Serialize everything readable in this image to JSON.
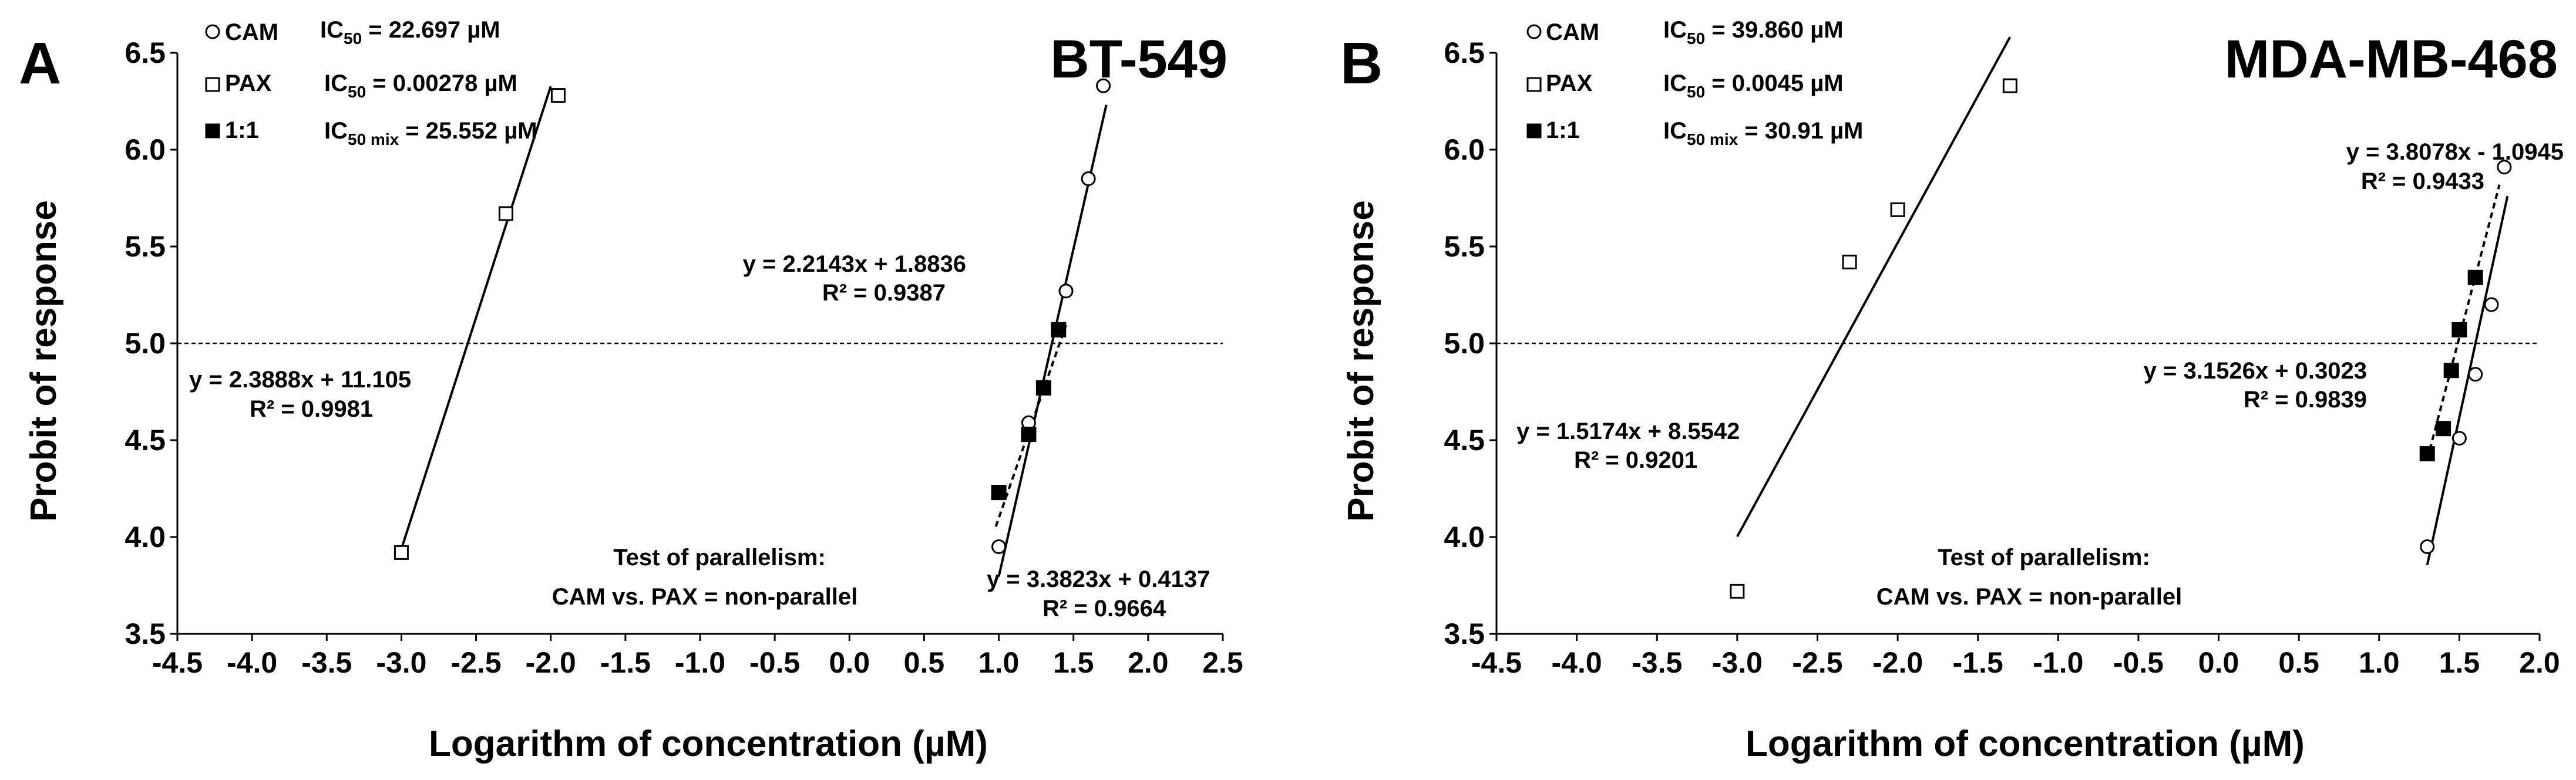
{
  "chart_data": [
    {
      "type": "scatter",
      "panel": "A",
      "title": "BT-549",
      "xlabel": "Logarithm of concentration (µM)",
      "ylabel": "Probit of response",
      "xlim": [
        -4.5,
        2.5
      ],
      "ylim": [
        3.5,
        6.5
      ],
      "x_ticks": [
        "-4.5",
        "-4.0",
        "-3.5",
        "-3.0",
        "-2.5",
        "-2.0",
        "-1.5",
        "-1.0",
        "-0.5",
        "0.0",
        "0.5",
        "1.0",
        "1.5",
        "2.0",
        "2.5"
      ],
      "y_ticks": [
        "3.5",
        "4.0",
        "4.5",
        "5.0",
        "5.5",
        "6.0",
        "6.5"
      ],
      "reference_y": 5.0,
      "legend": [
        {
          "marker": "open-circle",
          "name": "CAM",
          "ic_main": "IC",
          "ic_sub": "50",
          "ic_tail": " = 22.697 µM"
        },
        {
          "marker": "open-square",
          "name": "PAX",
          "ic_main": "IC",
          "ic_sub": "50",
          "ic_tail": " = 0.00278 µM"
        },
        {
          "marker": "filled-square",
          "name": "1:1",
          "ic_main": "IC",
          "ic_sub": "50 mix",
          "ic_tail": " = 25.552 µM"
        }
      ],
      "series": [
        {
          "name": "CAM",
          "marker": "open-circle",
          "points": [
            {
              "x": 1.0,
              "y": 3.95
            },
            {
              "x": 1.2,
              "y": 4.59
            },
            {
              "x": 1.45,
              "y": 5.27
            },
            {
              "x": 1.6,
              "y": 5.85
            },
            {
              "x": 1.7,
              "y": 6.33
            }
          ],
          "fit": {
            "x": [
              1.0,
              1.72
            ],
            "style": "solid",
            "equation": "y = 3.3823x + 0.4137",
            "r2": "R² = 0.9664"
          }
        },
        {
          "name": "PAX",
          "marker": "open-square",
          "points": [
            {
              "x": -3.0,
              "y": 3.92
            },
            {
              "x": -2.3,
              "y": 5.67
            },
            {
              "x": -1.95,
              "y": 6.28
            }
          ],
          "fit": {
            "x": [
              -3.0,
              -2.0
            ],
            "style": "solid",
            "equation": "y = 2.3888x + 11.105",
            "r2": "R² = 0.9981"
          }
        },
        {
          "name": "1:1",
          "marker": "filled-square",
          "points": [
            {
              "x": 1.0,
              "y": 4.23
            },
            {
              "x": 1.2,
              "y": 4.53
            },
            {
              "x": 1.3,
              "y": 4.77
            },
            {
              "x": 1.4,
              "y": 5.07
            }
          ],
          "fit": {
            "x": [
              0.98,
              1.45
            ],
            "style": "dashed",
            "equation": "y = 2.2143x + 1.8836",
            "r2": "R² = 0.9387"
          }
        }
      ],
      "note_line1": "Test of parallelism:",
      "note_line2": "CAM vs. PAX = non-parallel"
    },
    {
      "type": "scatter",
      "panel": "B",
      "title": "MDA-MB-468",
      "xlabel": "Logarithm of concentration (µM)",
      "ylabel": "Probit of response",
      "xlim": [
        -4.5,
        2.0
      ],
      "ylim": [
        3.5,
        6.5
      ],
      "x_ticks": [
        "-4.5",
        "-4.0",
        "-3.5",
        "-3.0",
        "-2.5",
        "-2.0",
        "-1.5",
        "-1.0",
        "-0.5",
        "0.0",
        "0.5",
        "1.0",
        "1.5",
        "2.0"
      ],
      "y_ticks": [
        "3.5",
        "4.0",
        "4.5",
        "5.0",
        "5.5",
        "6.0",
        "6.5"
      ],
      "reference_y": 5.0,
      "legend": [
        {
          "marker": "open-circle",
          "name": "CAM",
          "ic_main": "IC",
          "ic_sub": "50",
          "ic_tail": " = 39.860 µM"
        },
        {
          "marker": "open-square",
          "name": "PAX",
          "ic_main": "IC",
          "ic_sub": "50",
          "ic_tail": " = 0.0045 µM"
        },
        {
          "marker": "filled-square",
          "name": "1:1",
          "ic_main": "IC",
          "ic_sub": "50 mix",
          "ic_tail": " = 30.91 µM"
        }
      ],
      "series": [
        {
          "name": "CAM",
          "marker": "open-circle",
          "points": [
            {
              "x": 1.3,
              "y": 3.95
            },
            {
              "x": 1.5,
              "y": 4.51
            },
            {
              "x": 1.6,
              "y": 4.84
            },
            {
              "x": 1.7,
              "y": 5.2
            },
            {
              "x": 1.78,
              "y": 5.91
            }
          ],
          "fit": {
            "x": [
              1.3,
              1.8
            ],
            "style": "solid",
            "equation": "y = 3.8078x - 1.0945",
            "r2": "R² = 0.9433"
          }
        },
        {
          "name": "PAX",
          "marker": "open-square",
          "points": [
            {
              "x": -3.0,
              "y": 3.72
            },
            {
              "x": -2.3,
              "y": 5.42
            },
            {
              "x": -2.0,
              "y": 5.69
            },
            {
              "x": -1.3,
              "y": 6.33
            }
          ],
          "fit": {
            "x": [
              -3.0,
              -1.3
            ],
            "style": "solid",
            "equation": "y = 1.5174x + 8.5542",
            "r2": "R² = 0.9201"
          }
        },
        {
          "name": "1:1",
          "marker": "filled-square",
          "points": [
            {
              "x": 1.3,
              "y": 4.43
            },
            {
              "x": 1.4,
              "y": 4.56
            },
            {
              "x": 1.45,
              "y": 4.86
            },
            {
              "x": 1.5,
              "y": 5.07
            },
            {
              "x": 1.6,
              "y": 5.34
            }
          ],
          "fit": {
            "x": [
              1.3,
              1.75
            ],
            "style": "dashed",
            "equation": "y = 3.1526x + 0.3023",
            "r2": "R² = 0.9839"
          }
        }
      ],
      "note_line1": "Test of parallelism:",
      "note_line2": "CAM vs. PAX = non-parallel"
    }
  ]
}
